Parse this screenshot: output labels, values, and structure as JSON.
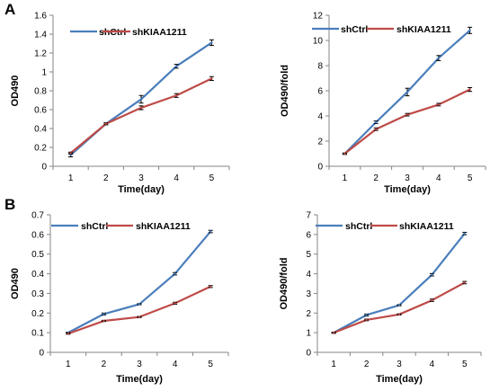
{
  "panel_labels": [
    "A",
    "B"
  ],
  "colors": {
    "shCtrl": "#4a7ebb",
    "shKIAA1211": "#be4b48"
  },
  "chart_data": [
    {
      "type": "line",
      "panel": "A",
      "x": [
        1,
        2,
        3,
        4,
        5
      ],
      "series": [
        {
          "name": "shCtrl",
          "values": [
            0.12,
            0.45,
            0.71,
            1.06,
            1.31
          ],
          "errors": [
            0.02,
            0.01,
            0.04,
            0.02,
            0.03
          ]
        },
        {
          "name": "shKIAA1211",
          "values": [
            0.14,
            0.45,
            0.62,
            0.75,
            0.93
          ],
          "errors": [
            0.01,
            0.01,
            0.02,
            0.02,
            0.02
          ]
        }
      ],
      "xlabel": "Time(day)",
      "ylabel": "OD490",
      "ylim": [
        0,
        1.6
      ],
      "yticks": [
        "0",
        "0.2",
        "0.4",
        "0.6",
        "0.8",
        "1",
        "1.2",
        "1.4",
        "1.6"
      ],
      "xticks": [
        "1",
        "2",
        "3",
        "4",
        "5"
      ],
      "grid": false,
      "legend": "top"
    },
    {
      "type": "line",
      "panel": "A",
      "x": [
        1,
        2,
        3,
        4,
        5
      ],
      "series": [
        {
          "name": "shCtrl",
          "values": [
            1.0,
            3.5,
            5.9,
            8.6,
            10.8
          ],
          "errors": [
            0.05,
            0.1,
            0.3,
            0.2,
            0.25
          ]
        },
        {
          "name": "shKIAA1211",
          "values": [
            1.0,
            2.95,
            4.1,
            4.9,
            6.1
          ],
          "errors": [
            0.05,
            0.1,
            0.1,
            0.1,
            0.15
          ]
        }
      ],
      "xlabel": "Time(day)",
      "ylabel": "OD490/fold",
      "ylim": [
        0,
        12
      ],
      "yticks": [
        "0",
        "2",
        "4",
        "6",
        "8",
        "10",
        "12"
      ],
      "xticks": [
        "1",
        "2",
        "3",
        "4",
        "5"
      ],
      "grid": false,
      "legend": "top"
    },
    {
      "type": "line",
      "panel": "B",
      "x": [
        1,
        2,
        3,
        4,
        5
      ],
      "series": [
        {
          "name": "shCtrl",
          "values": [
            0.1,
            0.195,
            0.245,
            0.4,
            0.615
          ],
          "errors": [
            0.003,
            0.005,
            0.003,
            0.006,
            0.006
          ]
        },
        {
          "name": "shKIAA1211",
          "values": [
            0.095,
            0.16,
            0.18,
            0.25,
            0.335
          ],
          "errors": [
            0.003,
            0.003,
            0.003,
            0.005,
            0.005
          ]
        }
      ],
      "xlabel": "Time(day)",
      "ylabel": "OD490",
      "ylim": [
        0,
        0.7
      ],
      "yticks": [
        "0",
        "0.1",
        "0.2",
        "0.3",
        "0.4",
        "0.5",
        "0.6",
        "0.7"
      ],
      "xticks": [
        "1",
        "2",
        "3",
        "4",
        "5"
      ],
      "grid": false,
      "legend": "top"
    },
    {
      "type": "line",
      "panel": "B",
      "x": [
        1,
        2,
        3,
        4,
        5
      ],
      "series": [
        {
          "name": "shCtrl",
          "values": [
            1.0,
            1.9,
            2.4,
            3.95,
            6.05
          ],
          "errors": [
            0.03,
            0.05,
            0.03,
            0.06,
            0.06
          ]
        },
        {
          "name": "shKIAA1211",
          "values": [
            1.0,
            1.65,
            1.93,
            2.65,
            3.55
          ],
          "errors": [
            0.03,
            0.04,
            0.03,
            0.06,
            0.06
          ]
        }
      ],
      "xlabel": "Time(day)",
      "ylabel": "OD490/fold",
      "ylim": [
        0,
        7
      ],
      "yticks": [
        "0",
        "1",
        "2",
        "3",
        "4",
        "5",
        "6",
        "7"
      ],
      "xticks": [
        "1",
        "2",
        "3",
        "4",
        "5"
      ],
      "grid": false,
      "legend": "top"
    }
  ]
}
